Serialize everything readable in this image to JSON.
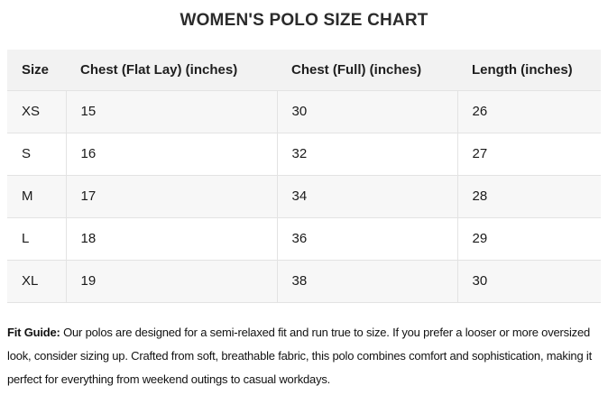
{
  "chart_data": {
    "type": "table",
    "title": "WOMEN'S POLO SIZE CHART",
    "columns": [
      "Size",
      "Chest (Flat Lay) (inches)",
      "Chest (Full) (inches)",
      "Length (inches)"
    ],
    "rows": [
      [
        "XS",
        "15",
        "30",
        "26"
      ],
      [
        "S",
        "16",
        "32",
        "27"
      ],
      [
        "M",
        "17",
        "34",
        "28"
      ],
      [
        "L",
        "18",
        "36",
        "29"
      ],
      [
        "XL",
        "19",
        "38",
        "30"
      ]
    ],
    "layout": {
      "header_align": "left",
      "striped_rows": true,
      "stripe_pattern": "odd-rows-gray"
    }
  },
  "fit_guide": {
    "label": "Fit Guide:",
    "text": " Our polos are designed for a semi-relaxed fit and run true to size. If you prefer a looser or more oversized look, consider sizing up. Crafted from soft, breathable fabric, this polo combines comfort and sophistication, making it perfect for everything from weekend outings to casual workdays."
  },
  "colors": {
    "header_bg": "#f2f2f2",
    "stripe_bg": "#f7f7f7",
    "row_bg": "#ffffff",
    "border": "#e3e3e3",
    "title_text": "#2b2b2b",
    "body_text": "#1a1a1a"
  }
}
